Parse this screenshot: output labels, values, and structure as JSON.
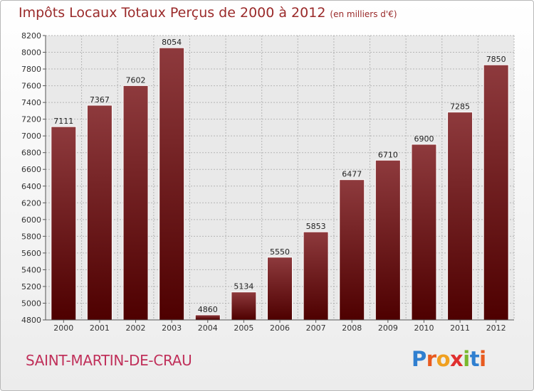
{
  "title": "Impôts Locaux Totaux Perçus de 2000 à 2012",
  "title_unit": "(en milliers d'€)",
  "city": "SAINT-MARTIN-DE-CRAU",
  "logo": {
    "letters": [
      "P",
      "r",
      "o",
      "x",
      "i",
      "t",
      "i"
    ],
    "colors": [
      "#2f7fd0",
      "#e85a1f",
      "#f0a020",
      "#e03030",
      "#7ab82e",
      "#2f7fd0",
      "#e85a1f"
    ]
  },
  "colors": {
    "bar_top": "#8e3a3d",
    "bar_bottom": "#4e0000",
    "title": "#9a2a2a",
    "city": "#c0305a"
  },
  "chart_data": {
    "type": "bar",
    "categories": [
      "2000",
      "2001",
      "2002",
      "2003",
      "2004",
      "2005",
      "2006",
      "2007",
      "2008",
      "2009",
      "2010",
      "2011",
      "2012"
    ],
    "values": [
      7111,
      7367,
      7602,
      8054,
      4860,
      5134,
      5550,
      5853,
      6477,
      6710,
      6900,
      7285,
      7850
    ],
    "ylim": [
      4800,
      8200
    ],
    "yticks": [
      4800,
      5000,
      5200,
      5400,
      5600,
      5800,
      6000,
      6200,
      6400,
      6600,
      6800,
      7000,
      7200,
      7400,
      7600,
      7800,
      8000,
      8200
    ],
    "grid": true,
    "data_labels": true
  }
}
